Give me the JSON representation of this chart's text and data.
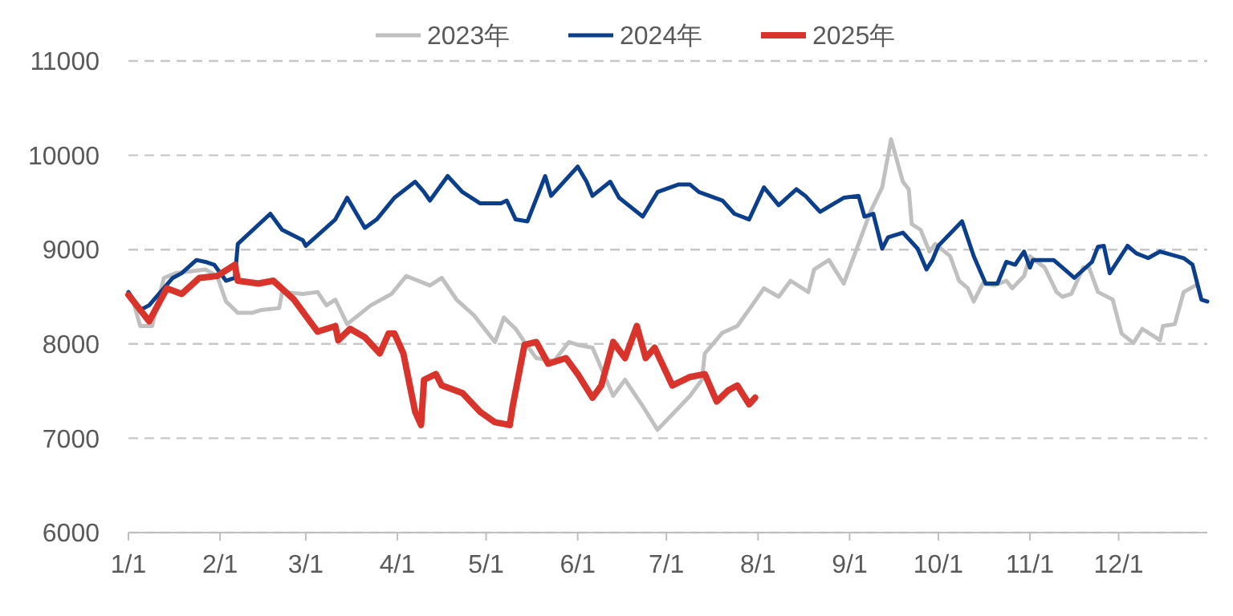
{
  "chart_data": {
    "type": "line",
    "legend": "top",
    "grid": "y",
    "line_style": "solid",
    "marker": "none",
    "xlim": [
      "--01-01",
      "--12-31"
    ],
    "xticks": [
      {
        "value": "--01-01",
        "label": "1/1"
      },
      {
        "value": "--02-01",
        "label": "2/1"
      },
      {
        "value": "--03-01",
        "label": "3/1"
      },
      {
        "value": "--04-01",
        "label": "4/1"
      },
      {
        "value": "--05-01",
        "label": "5/1"
      },
      {
        "value": "--06-01",
        "label": "6/1"
      },
      {
        "value": "--07-01",
        "label": "7/1"
      },
      {
        "value": "--08-01",
        "label": "8/1"
      },
      {
        "value": "--09-01",
        "label": "9/1"
      },
      {
        "value": "--10-01",
        "label": "10/1"
      },
      {
        "value": "--11-01",
        "label": "11/1"
      },
      {
        "value": "--12-01",
        "label": "12/1"
      }
    ],
    "ylim": [
      6000,
      11000
    ],
    "yticks": [
      6000,
      7000,
      8000,
      9000,
      10000,
      11000
    ],
    "series": [
      {
        "name": "2023年",
        "color": "#c0c0c0",
        "x": [
          "--01-03",
          "--01-05",
          "--01-09",
          "--01-13",
          "--01-17",
          "--01-27",
          "--01-31",
          "--02-03",
          "--02-07",
          "--02-12",
          "--02-15",
          "--02-21",
          "--02-22",
          "--02-29",
          "--03-05",
          "--03-08",
          "--03-11",
          "--03-15",
          "--03-23",
          "--03-30",
          "--04-04",
          "--04-12",
          "--04-16",
          "--04-21",
          "--04-27",
          "--05-04",
          "--05-06",
          "--05-07",
          "--05-11",
          "--05-14",
          "--05-18",
          "--05-24",
          "--05-29",
          "--06-01",
          "--06-06",
          "--06-09",
          "--06-13",
          "--06-17",
          "--06-23",
          "--06-28",
          "--07-02",
          "--07-09",
          "--07-13",
          "--07-14",
          "--07-20",
          "--07-25",
          "--07-30",
          "--08-03",
          "--08-08",
          "--08-12",
          "--08-18",
          "--08-20",
          "--08-25",
          "--08-30",
          "--09-04",
          "--09-08",
          "--09-12",
          "--09-15",
          "--09-19",
          "--09-21",
          "--09-22",
          "--09-25",
          "--09-28",
          "--09-30",
          "--10-05",
          "--10-08",
          "--10-11",
          "--10-13",
          "--10-16",
          "--10-20",
          "--10-24",
          "--10-26",
          "--10-30",
          "--11-01",
          "--11-06",
          "--11-10",
          "--11-12",
          "--11-15",
          "--11-19",
          "--11-21",
          "--11-24",
          "--11-29",
          "--12-02",
          "--12-06",
          "--12-09",
          "--12-15",
          "--12-16",
          "--12-20",
          "--12-23",
          "--12-27"
        ],
        "values": [
          8410,
          8190,
          8190,
          8700,
          8750,
          8790,
          8720,
          8450,
          8330,
          8330,
          8360,
          8380,
          8550,
          8530,
          8550,
          8410,
          8470,
          8210,
          8410,
          8530,
          8720,
          8620,
          8700,
          8470,
          8300,
          8020,
          8190,
          8280,
          8160,
          8020,
          7850,
          7820,
          8020,
          7990,
          7960,
          7740,
          7450,
          7620,
          7340,
          7090,
          7220,
          7450,
          7620,
          7900,
          8120,
          8190,
          8410,
          8590,
          8500,
          8670,
          8550,
          8790,
          8890,
          8640,
          9060,
          9400,
          9660,
          10170,
          9720,
          9640,
          9270,
          9210,
          8980,
          9060,
          8930,
          8670,
          8590,
          8450,
          8640,
          8620,
          8670,
          8590,
          8720,
          8930,
          8810,
          8550,
          8500,
          8530,
          8810,
          8810,
          8550,
          8470,
          8110,
          8010,
          8160,
          8040,
          8190,
          8210,
          8550,
          8620
        ]
      },
      {
        "name": "2024年",
        "color": "#0b3f8c",
        "x": [
          "--01-01",
          "--01-05",
          "--01-08",
          "--01-16",
          "--01-19",
          "--01-24",
          "--01-27",
          "--01-30",
          "--02-03",
          "--02-06",
          "--02-07",
          "--02-18",
          "--02-22",
          "--02-29",
          "--03-01",
          "--03-06",
          "--03-11",
          "--03-15",
          "--03-21",
          "--03-25",
          "--03-31",
          "--04-07",
          "--04-10",
          "--04-12",
          "--04-18",
          "--04-23",
          "--04-29",
          "--05-06",
          "--05-08",
          "--05-11",
          "--05-15",
          "--05-21",
          "--05-23",
          "--06-01",
          "--06-04",
          "--06-06",
          "--06-12",
          "--06-15",
          "--06-23",
          "--06-28",
          "--07-05",
          "--07-09",
          "--07-12",
          "--07-20",
          "--07-24",
          "--07-29",
          "--08-03",
          "--08-08",
          "--08-14",
          "--08-17",
          "--08-22",
          "--08-30",
          "--09-04",
          "--09-06",
          "--09-09",
          "--09-12",
          "--09-14",
          "--09-19",
          "--09-24",
          "--09-27",
          "--09-29",
          "--10-01",
          "--10-09",
          "--10-13",
          "--10-17",
          "--10-21",
          "--10-24",
          "--10-27",
          "--10-30",
          "--11-01",
          "--11-02",
          "--11-09",
          "--11-12",
          "--11-16",
          "--11-22",
          "--11-24",
          "--11-26",
          "--11-28",
          "--12-04",
          "--12-07",
          "--12-11",
          "--12-15",
          "--12-23",
          "--12-26",
          "--12-29",
          "--12-31"
        ],
        "values": [
          8550,
          8360,
          8410,
          8700,
          8750,
          8890,
          8870,
          8840,
          8670,
          8700,
          9060,
          9380,
          9210,
          9100,
          9040,
          9180,
          9320,
          9550,
          9230,
          9320,
          9550,
          9720,
          9610,
          9520,
          9780,
          9610,
          9490,
          9490,
          9520,
          9320,
          9300,
          9780,
          9570,
          9880,
          9720,
          9570,
          9720,
          9550,
          9350,
          9610,
          9690,
          9690,
          9610,
          9520,
          9380,
          9320,
          9660,
          9470,
          9640,
          9570,
          9400,
          9550,
          9570,
          9350,
          9380,
          9010,
          9130,
          9180,
          9010,
          8790,
          8890,
          9040,
          9300,
          8930,
          8640,
          8640,
          8870,
          8840,
          8980,
          8810,
          8890,
          8890,
          8810,
          8700,
          8870,
          9030,
          9040,
          8750,
          9040,
          8960,
          8910,
          8980,
          8910,
          8840,
          8470,
          8450
        ]
      },
      {
        "name": "2025年",
        "color": "#d9342b",
        "x": [
          "--01-01",
          "--01-08",
          "--01-14",
          "--01-19",
          "--01-25",
          "--01-31",
          "--02-06",
          "--02-07",
          "--02-14",
          "--02-19",
          "--02-26",
          "--03-05",
          "--03-11",
          "--03-12",
          "--03-16",
          "--03-21",
          "--03-26",
          "--03-29",
          "--03-31",
          "--04-03",
          "--04-07",
          "--04-09",
          "--04-10",
          "--04-14",
          "--04-16",
          "--04-23",
          "--04-29",
          "--05-04",
          "--05-09",
          "--05-10",
          "--05-14",
          "--05-18",
          "--05-22",
          "--05-28",
          "--06-01",
          "--06-06",
          "--06-09",
          "--06-13",
          "--06-17",
          "--06-21",
          "--06-24",
          "--06-27",
          "--07-03",
          "--07-09",
          "--07-14",
          "--07-18",
          "--07-22",
          "--07-25",
          "--07-29",
          "--07-31"
        ],
        "values": [
          8520,
          8240,
          8590,
          8530,
          8700,
          8720,
          8840,
          8670,
          8640,
          8670,
          8470,
          8130,
          8190,
          8040,
          8160,
          8070,
          7900,
          8110,
          8110,
          7900,
          7280,
          7140,
          7620,
          7680,
          7560,
          7480,
          7280,
          7170,
          7140,
          7340,
          7990,
          8020,
          7790,
          7850,
          7680,
          7430,
          7560,
          8020,
          7850,
          8190,
          7850,
          7960,
          7560,
          7650,
          7680,
          7390,
          7510,
          7560,
          7360,
          7430
        ]
      }
    ]
  }
}
